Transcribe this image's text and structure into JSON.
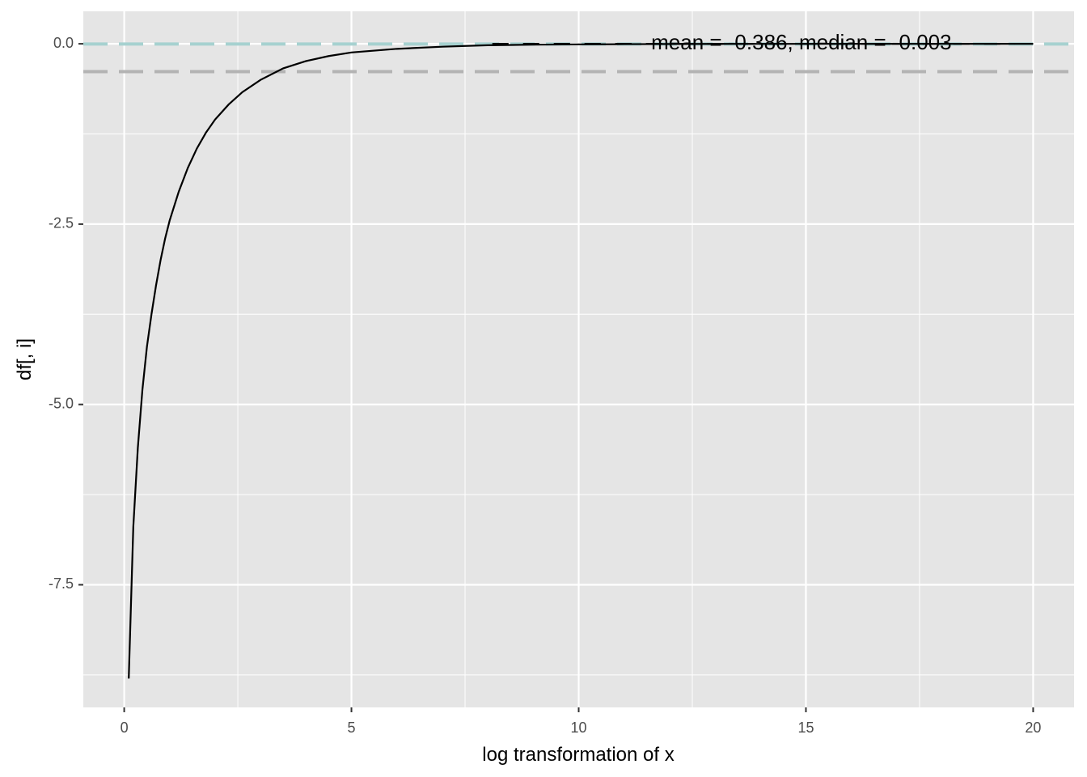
{
  "chart_data": {
    "type": "line",
    "xlabel": "log transformation of x",
    "ylabel": "df[, i]",
    "xlim": [
      -0.9,
      20.9
    ],
    "ylim": [
      -9.2,
      0.45
    ],
    "x_ticks": [
      0,
      5,
      10,
      15,
      20
    ],
    "x_tick_labels": [
      "0",
      "5",
      "10",
      "15",
      "20"
    ],
    "y_ticks": [
      0,
      -2.5,
      -5,
      -7.5
    ],
    "y_tick_labels": [
      "0.0",
      "-2.5",
      "-5.0",
      "-7.5"
    ],
    "grid": true,
    "series": [
      {
        "color": "#000000",
        "x": [
          0.1,
          0.2,
          0.3,
          0.4,
          0.5,
          0.6,
          0.7,
          0.8,
          0.9,
          1.0,
          1.2,
          1.4,
          1.6,
          1.8,
          2.0,
          2.3,
          2.6,
          3.0,
          3.5,
          4.0,
          4.5,
          5.0,
          6.0,
          7.0,
          8.0,
          9.0,
          10.0,
          11.0,
          12.0,
          13.0,
          14.0,
          15.0,
          16.0,
          17.0,
          18.0,
          19.0,
          20.0
        ],
        "y": [
          -8.8,
          -6.7,
          -5.6,
          -4.8,
          -4.2,
          -3.75,
          -3.35,
          -3.0,
          -2.7,
          -2.45,
          -2.05,
          -1.72,
          -1.45,
          -1.23,
          -1.05,
          -0.84,
          -0.67,
          -0.5,
          -0.34,
          -0.24,
          -0.17,
          -0.12,
          -0.07,
          -0.04,
          -0.02,
          -0.012,
          -0.008,
          -0.005,
          -0.003,
          -0.002,
          -0.001,
          -0.001,
          0,
          0,
          0,
          0,
          0
        ]
      }
    ],
    "reference_lines": [
      {
        "y": -0.386,
        "color": "#b3b3b3",
        "style": "dashed"
      },
      {
        "y": -0.003,
        "color": "#a6d1d0",
        "style": "dashed"
      }
    ],
    "annotation": {
      "text": "mean = -0.386, median = -0.003",
      "x": 14.9,
      "y": 0
    },
    "colors": {
      "panel": "#e5e5e5",
      "grid": "#ffffff",
      "line": "#000000"
    }
  }
}
